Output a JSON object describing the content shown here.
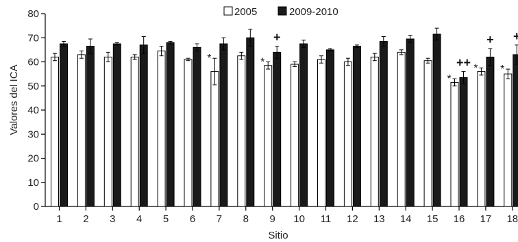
{
  "chart_data": {
    "type": "bar",
    "xlabel": "Sitio",
    "ylabel": "Valores del ICA",
    "ylim": [
      0,
      80
    ],
    "yticks": [
      0,
      10,
      20,
      30,
      40,
      50,
      60,
      70,
      80
    ],
    "categories": [
      "1",
      "2",
      "3",
      "4",
      "5",
      "6",
      "7",
      "8",
      "9",
      "10",
      "11",
      "12",
      "13",
      "14",
      "15",
      "16",
      "17",
      "18"
    ],
    "series": [
      {
        "name": "2005",
        "fill": "#ffffff",
        "values": [
          62,
          63,
          62,
          62,
          64.5,
          61,
          56,
          62.5,
          58.5,
          59,
          61,
          60,
          62,
          64,
          60.5,
          51.5,
          56,
          55
        ],
        "errors": [
          1.5,
          1.5,
          2.0,
          1.0,
          2.0,
          0.5,
          5.5,
          1.5,
          1.5,
          1.0,
          1.5,
          1.5,
          1.5,
          1.0,
          1.0,
          1.5,
          1.5,
          2.0
        ],
        "annotations": [
          "",
          "",
          "",
          "",
          "",
          "",
          "*",
          "",
          "*",
          "",
          "",
          "",
          "",
          "",
          "",
          "*",
          "*",
          "*"
        ]
      },
      {
        "name": "2009-2010",
        "fill": "#1a1a1a",
        "values": [
          67.5,
          66.5,
          67.5,
          67,
          68,
          66,
          67.5,
          70,
          64,
          67.5,
          65,
          66.5,
          68.5,
          69.5,
          71.5,
          53.5,
          62,
          63
        ],
        "errors": [
          1.0,
          3.0,
          0.5,
          3.5,
          0.5,
          1.5,
          2.5,
          3.5,
          2.5,
          1.5,
          0.5,
          0.5,
          2.0,
          1.5,
          2.5,
          2.5,
          3.5,
          4.0
        ],
        "annotations": [
          "",
          "",
          "",
          "",
          "",
          "",
          "",
          "",
          "+",
          "",
          "",
          "",
          "",
          "",
          "",
          "++",
          "+",
          "+"
        ]
      }
    ],
    "legend_position": "top-center",
    "grid": false
  }
}
